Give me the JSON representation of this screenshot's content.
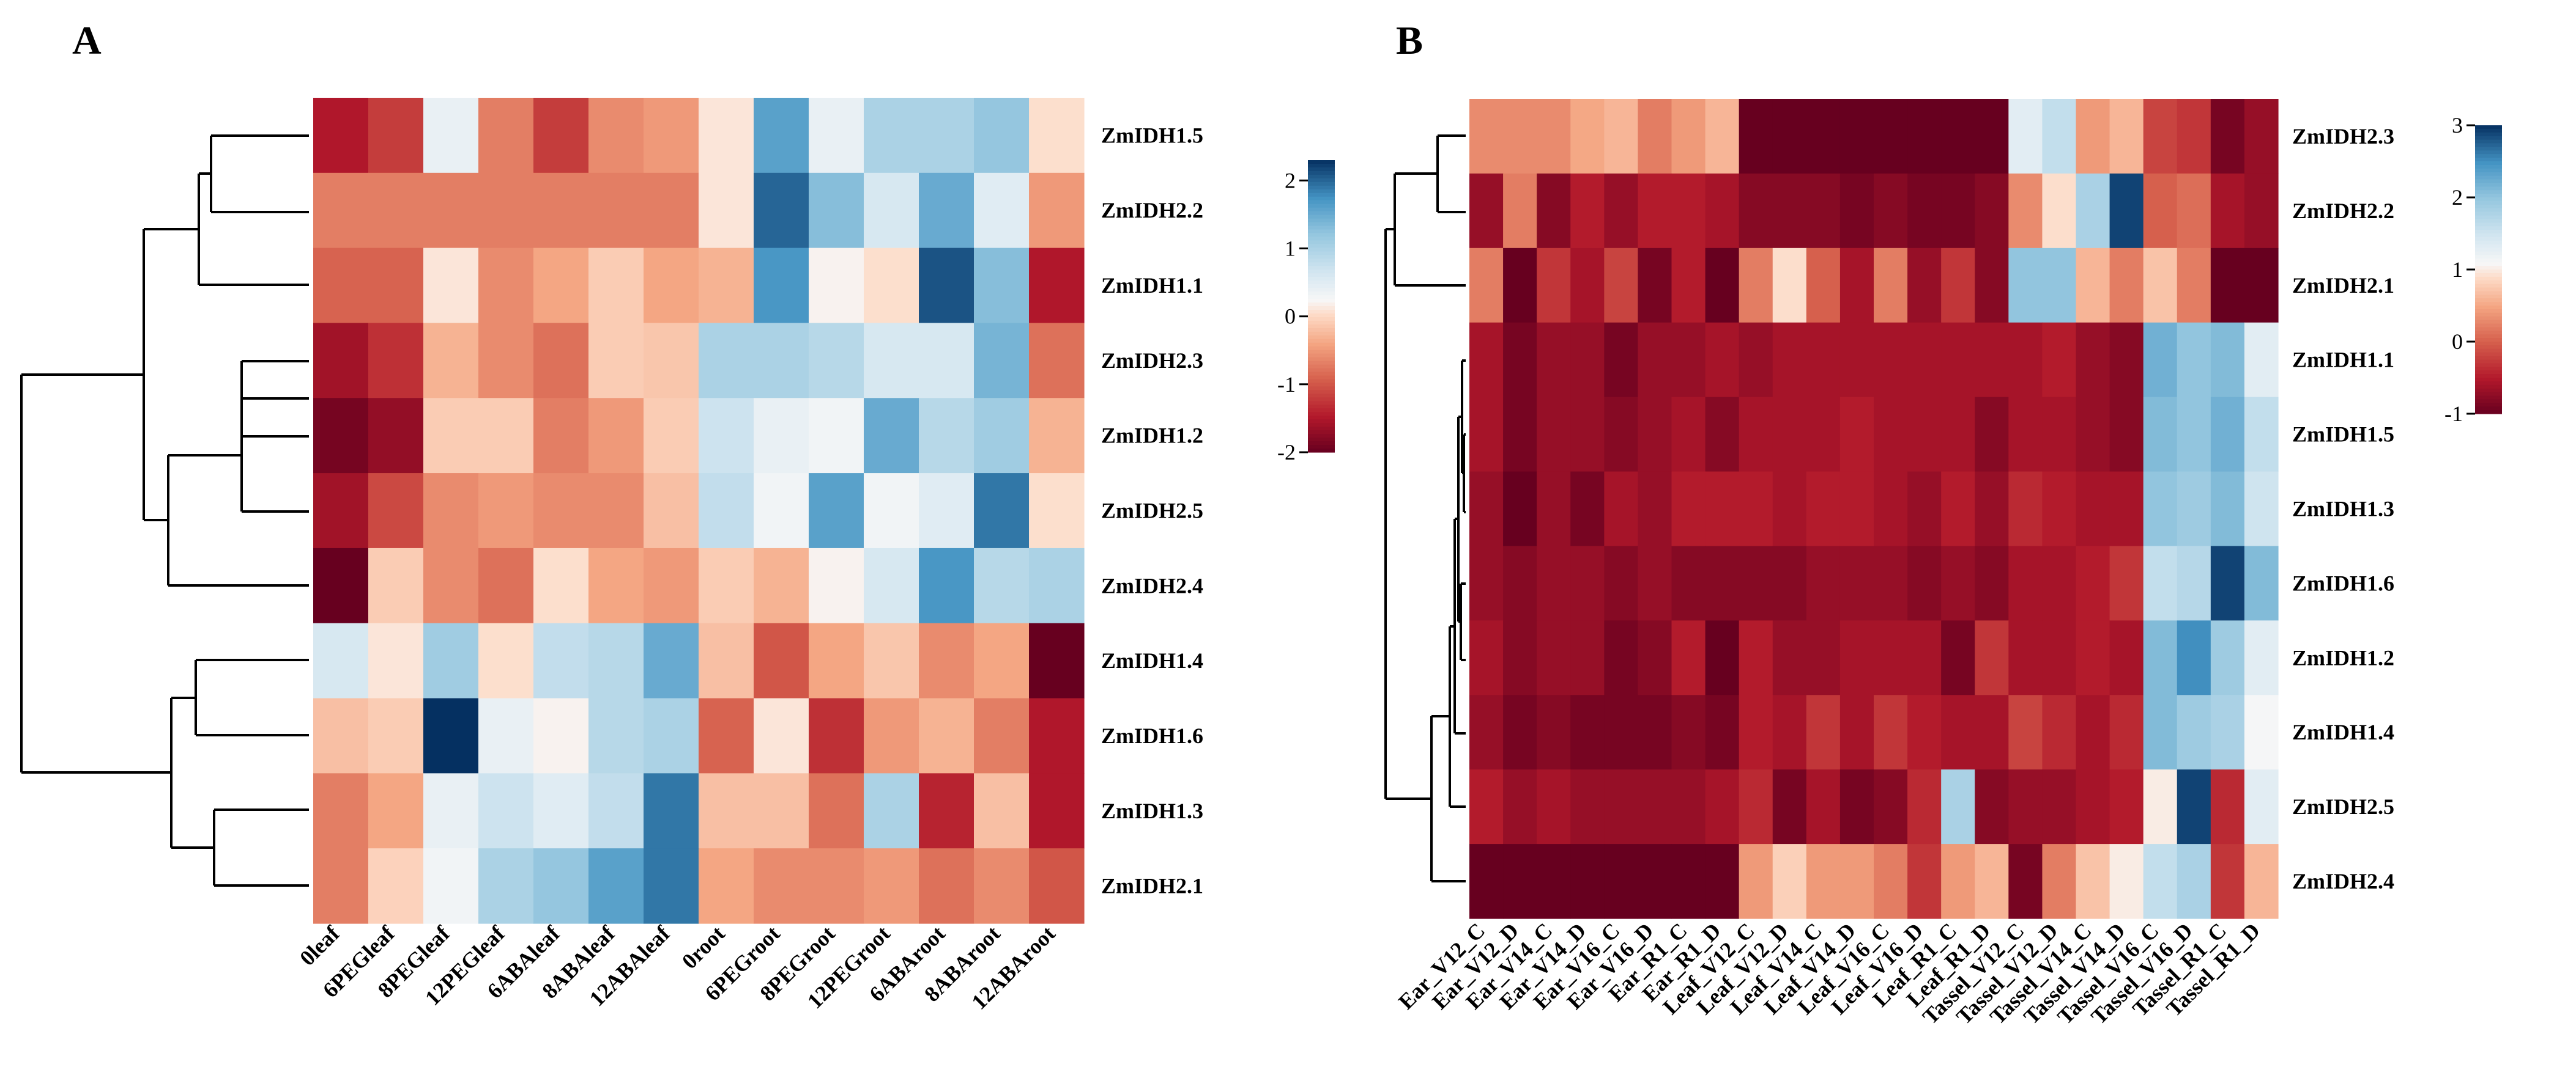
{
  "chart_data": [
    {
      "type": "heatmap",
      "panel": "A",
      "rows": [
        "ZmIDH1.5",
        "ZmIDH2.2",
        "ZmIDH1.1",
        "ZmIDH2.3",
        "ZmIDH1.2",
        "ZmIDH2.5",
        "ZmIDH2.4",
        "ZmIDH1.4",
        "ZmIDH1.6",
        "ZmIDH1.3",
        "ZmIDH2.1"
      ],
      "columns": [
        "0leaf",
        "6PEGleaf",
        "8PEGleaf",
        "12PEGleaf",
        "6ABAleaf",
        "8ABAleaf",
        "12ABAleaf",
        "0root",
        "6PEGroot",
        "8PEGroot",
        "12PEGroot",
        "6ABAroot",
        "8ABAroot",
        "12ABAroot"
      ],
      "values": [
        [
          -1.5,
          -1.2,
          0.4,
          -0.7,
          -1.2,
          -0.6,
          -0.5,
          0.1,
          1.6,
          0.4,
          1.0,
          1.0,
          1.2,
          0.05
        ],
        [
          -0.7,
          -0.7,
          -0.7,
          -0.7,
          -0.7,
          -0.7,
          -0.7,
          0.1,
          2.0,
          1.3,
          0.6,
          1.5,
          0.5,
          -0.5
        ],
        [
          -0.9,
          -0.9,
          0.1,
          -0.6,
          -0.4,
          -0.1,
          -0.4,
          -0.3,
          1.7,
          0.2,
          0.05,
          2.1,
          1.3,
          -1.5
        ],
        [
          -1.6,
          -1.3,
          -0.3,
          -0.6,
          -0.8,
          -0.1,
          -0.15,
          1.0,
          1.0,
          0.9,
          0.6,
          0.6,
          1.4,
          -0.8
        ],
        [
          -1.9,
          -1.7,
          -0.1,
          -0.1,
          -0.7,
          -0.5,
          -0.1,
          0.7,
          0.4,
          0.3,
          1.5,
          0.9,
          1.1,
          -0.3
        ],
        [
          -1.6,
          -1.1,
          -0.6,
          -0.5,
          -0.6,
          -0.6,
          -0.2,
          0.8,
          0.3,
          1.6,
          0.3,
          0.5,
          1.9,
          0.05
        ],
        [
          -2.0,
          -0.1,
          -0.6,
          -0.8,
          0.05,
          -0.4,
          -0.5,
          -0.1,
          -0.3,
          0.2,
          0.6,
          1.7,
          0.9,
          1.0
        ],
        [
          0.6,
          0.1,
          1.1,
          0.05,
          0.8,
          0.9,
          1.5,
          -0.2,
          -1.0,
          -0.4,
          -0.15,
          -0.6,
          -0.4,
          -2.0
        ],
        [
          -0.2,
          -0.1,
          2.3,
          0.4,
          0.2,
          0.9,
          1.0,
          -0.9,
          0.1,
          -1.3,
          -0.5,
          -0.3,
          -0.7,
          -1.5
        ],
        [
          -0.7,
          -0.4,
          0.4,
          0.7,
          0.5,
          0.8,
          1.9,
          -0.2,
          -0.2,
          -0.8,
          1.0,
          -1.4,
          -0.2,
          -1.5
        ],
        [
          -0.7,
          -0.05,
          0.3,
          1.0,
          1.2,
          1.6,
          1.9,
          -0.4,
          -0.6,
          -0.6,
          -0.5,
          -0.8,
          -0.6,
          -1.0
        ]
      ],
      "colorbar": {
        "min": -2,
        "max": 2.3,
        "ticks": [
          -2,
          -1,
          0,
          1,
          2
        ]
      }
    },
    {
      "type": "heatmap",
      "panel": "B",
      "rows": [
        "ZmIDH2.3",
        "ZmIDH2.2",
        "ZmIDH2.1",
        "ZmIDH1.1",
        "ZmIDH1.5",
        "ZmIDH1.3",
        "ZmIDH1.6",
        "ZmIDH1.2",
        "ZmIDH1.4",
        "ZmIDH2.5",
        "ZmIDH2.4"
      ],
      "columns": [
        "Ear_V12_C",
        "Ear_V12_D",
        "Ear_V14_C",
        "Ear_V14_D",
        "Ear_V16_C",
        "Ear_V16_D",
        "Ear_R1_C",
        "Ear_R1_D",
        "Leaf_V12_C",
        "Leaf_V12_D",
        "Leaf_V14_C",
        "Leaf_V14_D",
        "Leaf_V16_C",
        "Leaf_V16_D",
        "Leaf_R1_C",
        "Leaf_R1_D",
        "Tassel_V12_C",
        "Tassel_V12_D",
        "Tassel_V14_C",
        "Tassel_V14_D",
        "Tassel_V16_C",
        "Tassel_V16_D",
        "Tassel_R1_C",
        "Tassel_R1_D"
      ],
      "values": [
        [
          0.3,
          0.3,
          0.3,
          0.5,
          0.6,
          0.2,
          0.4,
          0.6,
          -1,
          -1,
          -1,
          -1,
          -1,
          -1,
          -1,
          -1,
          1.3,
          1.6,
          0.4,
          0.6,
          -0.2,
          -0.3,
          -0.9,
          -0.7
        ],
        [
          -0.7,
          0.2,
          -0.8,
          -0.5,
          -0.7,
          -0.5,
          -0.5,
          -0.6,
          -0.8,
          -0.8,
          -0.8,
          -0.9,
          -0.8,
          -0.9,
          -0.9,
          -0.8,
          0.3,
          0.9,
          1.8,
          2.9,
          0.0,
          0.1,
          -0.6,
          -0.7
        ],
        [
          0.2,
          -1,
          -0.3,
          -0.6,
          -0.2,
          -0.9,
          -0.5,
          -1,
          0.2,
          0.9,
          0.0,
          -0.6,
          0.2,
          -0.7,
          -0.3,
          -0.8,
          2.0,
          2.0,
          0.6,
          0.2,
          0.7,
          0.2,
          -1,
          -1
        ],
        [
          -0.6,
          -0.9,
          -0.7,
          -0.7,
          -0.9,
          -0.7,
          -0.7,
          -0.6,
          -0.7,
          -0.6,
          -0.6,
          -0.6,
          -0.6,
          -0.6,
          -0.6,
          -0.6,
          -0.6,
          -0.5,
          -0.7,
          -0.8,
          2.2,
          2.0,
          2.1,
          1.3
        ],
        [
          -0.6,
          -0.9,
          -0.7,
          -0.7,
          -0.8,
          -0.7,
          -0.6,
          -0.8,
          -0.6,
          -0.6,
          -0.6,
          -0.5,
          -0.6,
          -0.6,
          -0.6,
          -0.8,
          -0.6,
          -0.6,
          -0.7,
          -0.8,
          2.1,
          2.0,
          2.2,
          1.6
        ],
        [
          -0.7,
          -1,
          -0.7,
          -0.9,
          -0.6,
          -0.7,
          -0.5,
          -0.5,
          -0.5,
          -0.6,
          -0.5,
          -0.5,
          -0.6,
          -0.7,
          -0.5,
          -0.7,
          -0.4,
          -0.5,
          -0.6,
          -0.6,
          2.0,
          1.9,
          2.1,
          1.5
        ],
        [
          -0.7,
          -0.8,
          -0.7,
          -0.7,
          -0.8,
          -0.7,
          -0.8,
          -0.8,
          -0.8,
          -0.8,
          -0.7,
          -0.7,
          -0.7,
          -0.8,
          -0.7,
          -0.8,
          -0.6,
          -0.6,
          -0.5,
          -0.3,
          1.6,
          1.7,
          2.9,
          2.1
        ],
        [
          -0.6,
          -0.8,
          -0.7,
          -0.7,
          -0.9,
          -0.8,
          -0.5,
          -1,
          -0.5,
          -0.7,
          -0.7,
          -0.6,
          -0.6,
          -0.6,
          -0.9,
          -0.3,
          -0.6,
          -0.6,
          -0.5,
          -0.6,
          2.1,
          2.5,
          1.9,
          1.3
        ],
        [
          -0.7,
          -0.9,
          -0.8,
          -0.9,
          -0.9,
          -0.9,
          -0.8,
          -0.9,
          -0.5,
          -0.6,
          -0.3,
          -0.6,
          -0.3,
          -0.5,
          -0.6,
          -0.6,
          -0.2,
          -0.4,
          -0.6,
          -0.4,
          2.1,
          1.9,
          1.8,
          1.1
        ],
        [
          -0.5,
          -0.7,
          -0.6,
          -0.7,
          -0.7,
          -0.7,
          -0.7,
          -0.6,
          -0.4,
          -0.9,
          -0.6,
          -0.9,
          -0.8,
          -0.4,
          1.8,
          -0.8,
          -0.7,
          -0.7,
          -0.6,
          -0.5,
          1.0,
          2.9,
          -0.4,
          1.3
        ],
        [
          -1,
          -1,
          -1,
          -1,
          -1,
          -1,
          -1,
          -1,
          0.4,
          0.8,
          0.4,
          0.4,
          0.2,
          -0.3,
          0.4,
          0.6,
          -0.9,
          0.2,
          0.7,
          1.0,
          1.6,
          1.8,
          -0.3,
          0.6
        ]
      ],
      "colorbar": {
        "min": -1,
        "max": 3,
        "ticks": [
          -1,
          0,
          1,
          2,
          3
        ]
      }
    }
  ]
}
